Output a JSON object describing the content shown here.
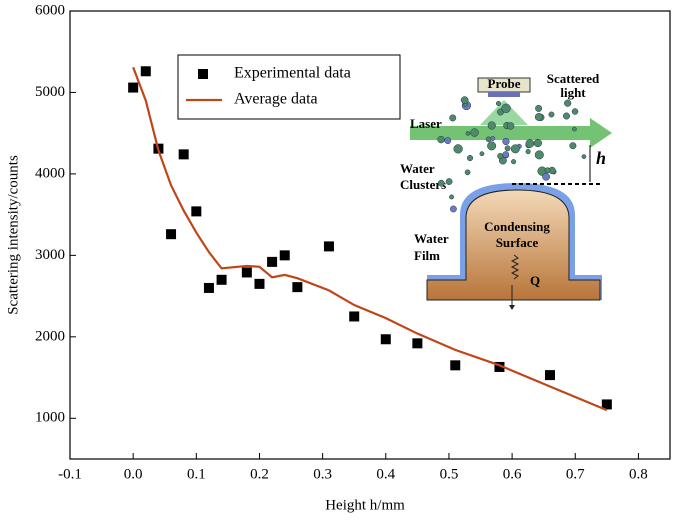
{
  "chart_data": {
    "type": "scatter-line",
    "x_label": "Height h/mm",
    "y_label": "Scattering intensity/counts",
    "xlim": [
      -0.1,
      0.85
    ],
    "xticks": [
      -0.1,
      {
        "value": 0,
        "label": "0.0"
      },
      0.1,
      0.2,
      0.3,
      0.4,
      0.5,
      0.6,
      0.7,
      0.8
    ],
    "ylim": [
      500,
      6000
    ],
    "yticks": [
      1000,
      2000,
      3000,
      4000,
      5000,
      6000
    ],
    "legend": "upper center",
    "series": [
      {
        "name": "Experimental data",
        "type": "scatter",
        "color": "#000000",
        "x": [
          0,
          0.02,
          0.04,
          0.06,
          0.08,
          0.1,
          0.12,
          0.14,
          0.18,
          0.2,
          0.22,
          0.24,
          0.26,
          0.31,
          0.35,
          0.4,
          0.45,
          0.51,
          0.58,
          0.66,
          0.75
        ],
        "values": [
          5060,
          5260,
          4310,
          3260,
          4240,
          3540,
          2600,
          2700,
          2790,
          2650,
          2920,
          3000,
          2610,
          3110,
          2250,
          1970,
          1920,
          1650,
          1630,
          1530,
          1170
        ]
      },
      {
        "name": "Average data",
        "type": "line",
        "color": "#c0461a",
        "x": [
          0,
          0.02,
          0.04,
          0.06,
          0.08,
          0.1,
          0.12,
          0.14,
          0.18,
          0.2,
          0.22,
          0.24,
          0.26,
          0.31,
          0.35,
          0.4,
          0.45,
          0.51,
          0.58,
          0.66,
          0.75
        ],
        "values": [
          5310,
          4900,
          4290,
          3860,
          3550,
          3280,
          3040,
          2840,
          2870,
          2860,
          2730,
          2760,
          2720,
          2570,
          2390,
          2230,
          2040,
          1840,
          1650,
          1390,
          1100
        ]
      }
    ],
    "annotations": [
      "Probe",
      "Scattered",
      "light",
      "Laser",
      "Water",
      "Clusters",
      "h",
      "Water",
      "Film",
      "Condensing",
      "Surface",
      "Q"
    ]
  }
}
